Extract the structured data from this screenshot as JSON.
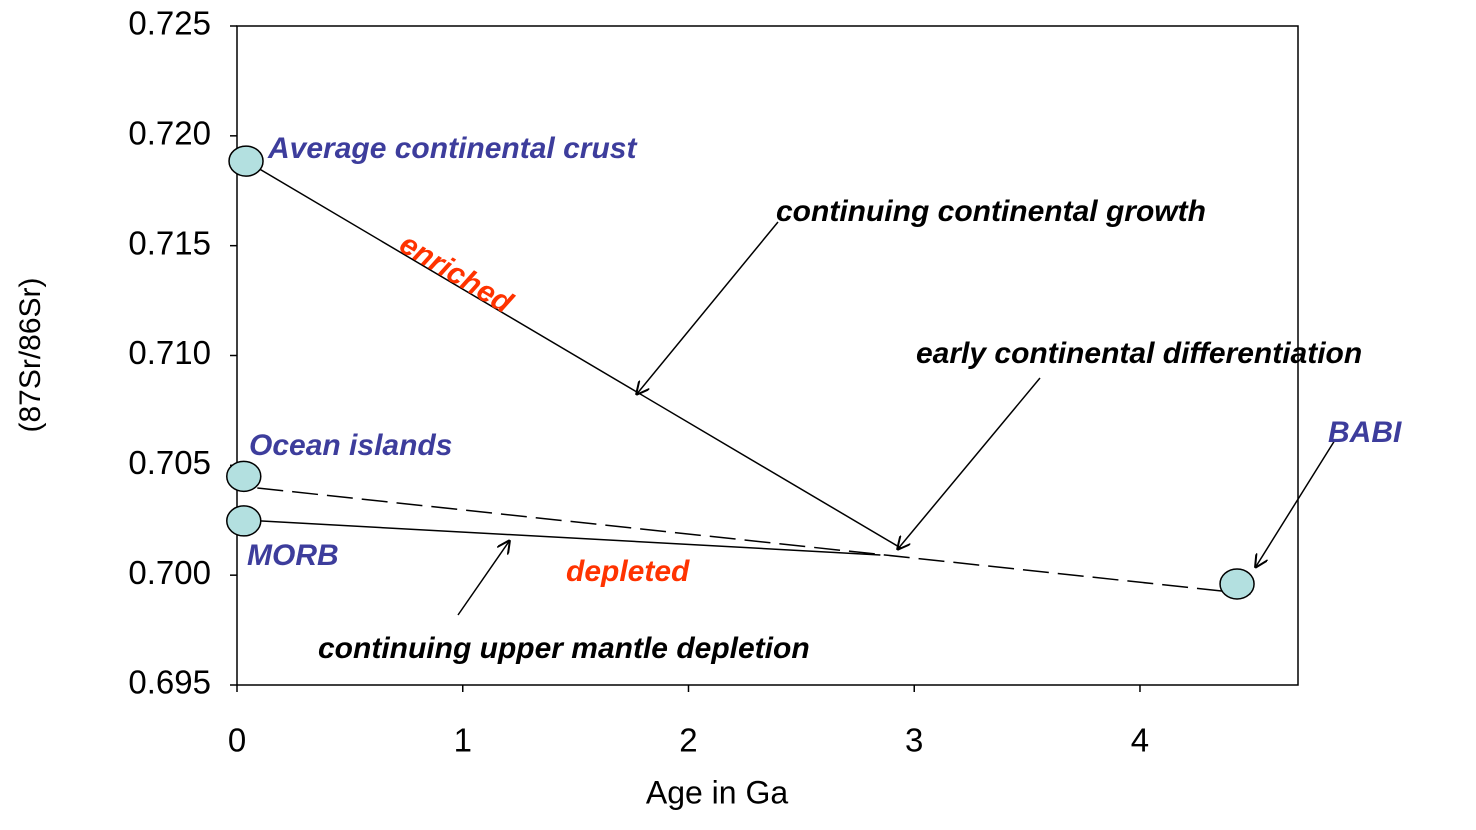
{
  "chart_data": {
    "type": "scatter",
    "x_label": "Age in Ga",
    "y_label": "(87Sr/86Sr)",
    "xlim": [
      0,
      4.7
    ],
    "ylim": [
      0.695,
      0.725
    ],
    "xticks": [
      0,
      1,
      2,
      3,
      4
    ],
    "yticks": [
      0.695,
      {
        "value": 0.7,
        "label": "0.700"
      },
      0.705,
      {
        "value": 0.71,
        "label": "0.710"
      },
      0.715,
      {
        "value": 0.72,
        "label": "0.720"
      },
      0.725
    ],
    "points": {
      "color": "#b3e0e0",
      "x": [
        0.04,
        0.03,
        0.03,
        4.43
      ],
      "y": [
        0.71885,
        0.7045,
        0.70247,
        0.6996
      ]
    },
    "lines": [
      {
        "x": [
          0.04,
          2.94
        ],
        "y": [
          0.71885,
          0.70124
        ],
        "dashed": false
      },
      {
        "x": [
          0.1,
          2.85
        ],
        "y": [
          0.70247,
          0.70092
        ],
        "dashed": false
      },
      {
        "x": [
          0.09,
          4.49
        ],
        "y": [
          0.70397,
          0.69914
        ],
        "dashed": true
      }
    ],
    "annotations": [
      {
        "text": "Average continental crust",
        "color": "#3d3d9c"
      },
      {
        "text": "enriched",
        "color": "#ff3300"
      },
      {
        "text": "continuing continental growth",
        "color": "#000000"
      },
      {
        "text": "early continental differentiation",
        "color": "#000000"
      },
      {
        "text": "Ocean islands",
        "color": "#3d3d9c"
      },
      {
        "text": "MORB",
        "color": "#3d3d9c"
      },
      {
        "text": "depleted",
        "color": "#ff3300"
      },
      {
        "text": "continuing upper mantle depletion",
        "color": "#000000"
      },
      {
        "text": "BABI",
        "color": "#3d3d9c"
      }
    ]
  }
}
